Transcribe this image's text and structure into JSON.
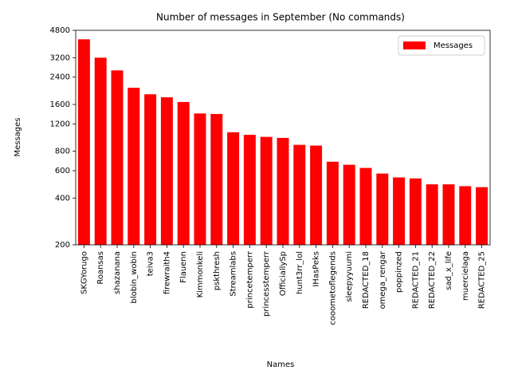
{
  "chart_data": {
    "type": "bar",
    "title": "Number of messages in September (No commands)",
    "x_label": "Names",
    "y_label": "Messages",
    "categories": [
      "SKGYorugo",
      "Roansas",
      "shazanana",
      "blobin_wobin",
      "teiva3",
      "firewraith4",
      "Flauenn",
      "Kimmonkeli",
      "pskthresh",
      "Streamlabs",
      "princetemperr",
      "princesstemperr",
      "OfficiallySp",
      "hunt3rr_lol",
      "IHasPeks",
      "cooometoflegends",
      "sleepyyuumi",
      "REDACTED_18",
      "omega_rengar",
      "poppinzed",
      "REDACTED_21",
      "REDACTED_22",
      "sad_x_life",
      "muercielaga",
      "REDACTED_25"
    ],
    "series": [
      {
        "name": "Messages",
        "color": "#ff0000",
        "values": [
          4200,
          3200,
          2650,
          2050,
          1860,
          1780,
          1660,
          1400,
          1390,
          1060,
          1020,
          990,
          975,
          880,
          870,
          685,
          655,
          625,
          575,
          543,
          535,
          490,
          490,
          477,
          470
        ]
      }
    ],
    "ylim": [
      200,
      4800
    ],
    "yticks": [
      200,
      400,
      600,
      800,
      1200,
      1600,
      2400,
      3200,
      4800
    ],
    "log_scale_y": true,
    "legend": "upper right"
  }
}
